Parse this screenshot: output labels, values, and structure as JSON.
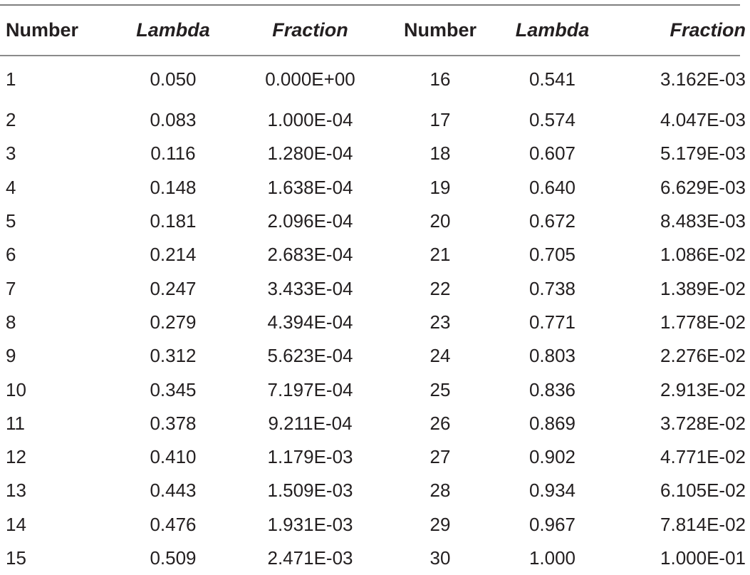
{
  "headers": {
    "number1": "Number",
    "lambda1": "Lambda",
    "fraction1": "Fraction",
    "number2": "Number",
    "lambda2": "Lambda",
    "fraction2": "Fraction"
  },
  "rows": [
    {
      "n1": "1",
      "l1": "0.050",
      "f1": "0.000E+00",
      "n2": "16",
      "l2": "0.541",
      "f2": "3.162E-03"
    },
    {
      "n1": "2",
      "l1": "0.083",
      "f1": "1.000E-04",
      "n2": "17",
      "l2": "0.574",
      "f2": "4.047E-03"
    },
    {
      "n1": "3",
      "l1": "0.116",
      "f1": "1.280E-04",
      "n2": "18",
      "l2": "0.607",
      "f2": "5.179E-03"
    },
    {
      "n1": "4",
      "l1": "0.148",
      "f1": "1.638E-04",
      "n2": "19",
      "l2": "0.640",
      "f2": "6.629E-03"
    },
    {
      "n1": "5",
      "l1": "0.181",
      "f1": "2.096E-04",
      "n2": "20",
      "l2": "0.672",
      "f2": "8.483E-03"
    },
    {
      "n1": "6",
      "l1": "0.214",
      "f1": "2.683E-04",
      "n2": "21",
      "l2": "0.705",
      "f2": "1.086E-02"
    },
    {
      "n1": "7",
      "l1": "0.247",
      "f1": "3.433E-04",
      "n2": "22",
      "l2": "0.738",
      "f2": "1.389E-02"
    },
    {
      "n1": "8",
      "l1": "0.279",
      "f1": "4.394E-04",
      "n2": "23",
      "l2": "0.771",
      "f2": "1.778E-02"
    },
    {
      "n1": "9",
      "l1": "0.312",
      "f1": "5.623E-04",
      "n2": "24",
      "l2": "0.803",
      "f2": "2.276E-02"
    },
    {
      "n1": "10",
      "l1": "0.345",
      "f1": "7.197E-04",
      "n2": "25",
      "l2": "0.836",
      "f2": "2.913E-02"
    },
    {
      "n1": "11",
      "l1": "0.378",
      "f1": "9.211E-04",
      "n2": "26",
      "l2": "0.869",
      "f2": "3.728E-02"
    },
    {
      "n1": "12",
      "l1": "0.410",
      "f1": "1.179E-03",
      "n2": "27",
      "l2": "0.902",
      "f2": "4.771E-02"
    },
    {
      "n1": "13",
      "l1": "0.443",
      "f1": "1.509E-03",
      "n2": "28",
      "l2": "0.934",
      "f2": "6.105E-02"
    },
    {
      "n1": "14",
      "l1": "0.476",
      "f1": "1.931E-03",
      "n2": "29",
      "l2": "0.967",
      "f2": "7.814E-02"
    },
    {
      "n1": "15",
      "l1": "0.509",
      "f1": "2.471E-03",
      "n2": "30",
      "l2": "1.000",
      "f2": "1.000E-01"
    }
  ]
}
